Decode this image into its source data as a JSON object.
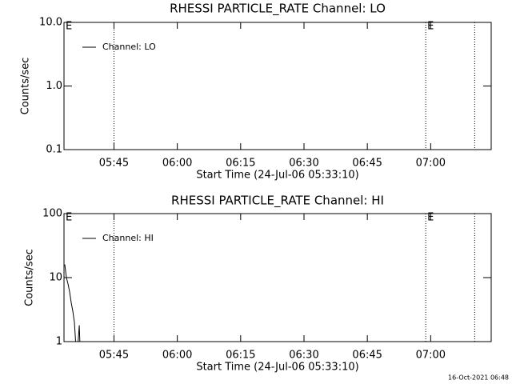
{
  "chart_data": [
    {
      "type": "line",
      "title": "RHESSI PARTICLE_RATE Channel: LO",
      "xlabel": "Start Time (24-Jul-06 05:33:10)",
      "ylabel": "Counts/sec",
      "xlim": [
        "05:33:10",
        "07:14:20"
      ],
      "xticks": [
        "05:45",
        "06:00",
        "06:15",
        "06:30",
        "06:45",
        "07:00"
      ],
      "ylim": [
        0.1,
        10
      ],
      "yticks": [
        0.1,
        {
          "value": 1,
          "label": "1.0"
        },
        {
          "value": 10,
          "label": "10.0"
        }
      ],
      "log_y": true,
      "grid": false,
      "legend": "upper left",
      "vlines": [
        "05:45:00",
        "06:58:50",
        "07:10:25"
      ],
      "annotations": [
        {
          "text": "E",
          "x": "05:33:10"
        },
        {
          "text": "E",
          "x": "06:58:50"
        }
      ],
      "series": [
        {
          "name": "Channel: LO",
          "color": "#000000",
          "x": [],
          "values": []
        }
      ]
    },
    {
      "type": "line",
      "title": "RHESSI PARTICLE_RATE Channel: HI",
      "xlabel": "Start Time (24-Jul-06 05:33:10)",
      "ylabel": "Counts/sec",
      "xlim": [
        "05:33:10",
        "07:14:20"
      ],
      "xticks": [
        "05:45",
        "06:00",
        "06:15",
        "06:30",
        "06:45",
        "07:00"
      ],
      "ylim": [
        1,
        100
      ],
      "yticks": [
        1,
        10,
        100
      ],
      "log_y": true,
      "grid": false,
      "legend": "upper left",
      "vlines": [
        "05:45:00",
        "06:58:50",
        "07:10:25"
      ],
      "annotations": [
        {
          "text": "E",
          "x": "05:33:10"
        },
        {
          "text": "E",
          "x": "06:58:50"
        }
      ],
      "series": [
        {
          "name": "Channel: HI",
          "color": "#000000",
          "x": [
            "05:33:21",
            "05:33:44",
            "05:34:07",
            "05:34:30",
            "05:34:53",
            "05:35:15",
            "05:35:38",
            "05:36:01",
            "05:36:24",
            "05:36:47",
            "05:36:58"
          ],
          "values": [
            16,
            10,
            8,
            6,
            4,
            3,
            2,
            0.8,
            0.8,
            1.8,
            0.8
          ]
        }
      ]
    }
  ],
  "footer": "16-Oct-2021 06:48"
}
